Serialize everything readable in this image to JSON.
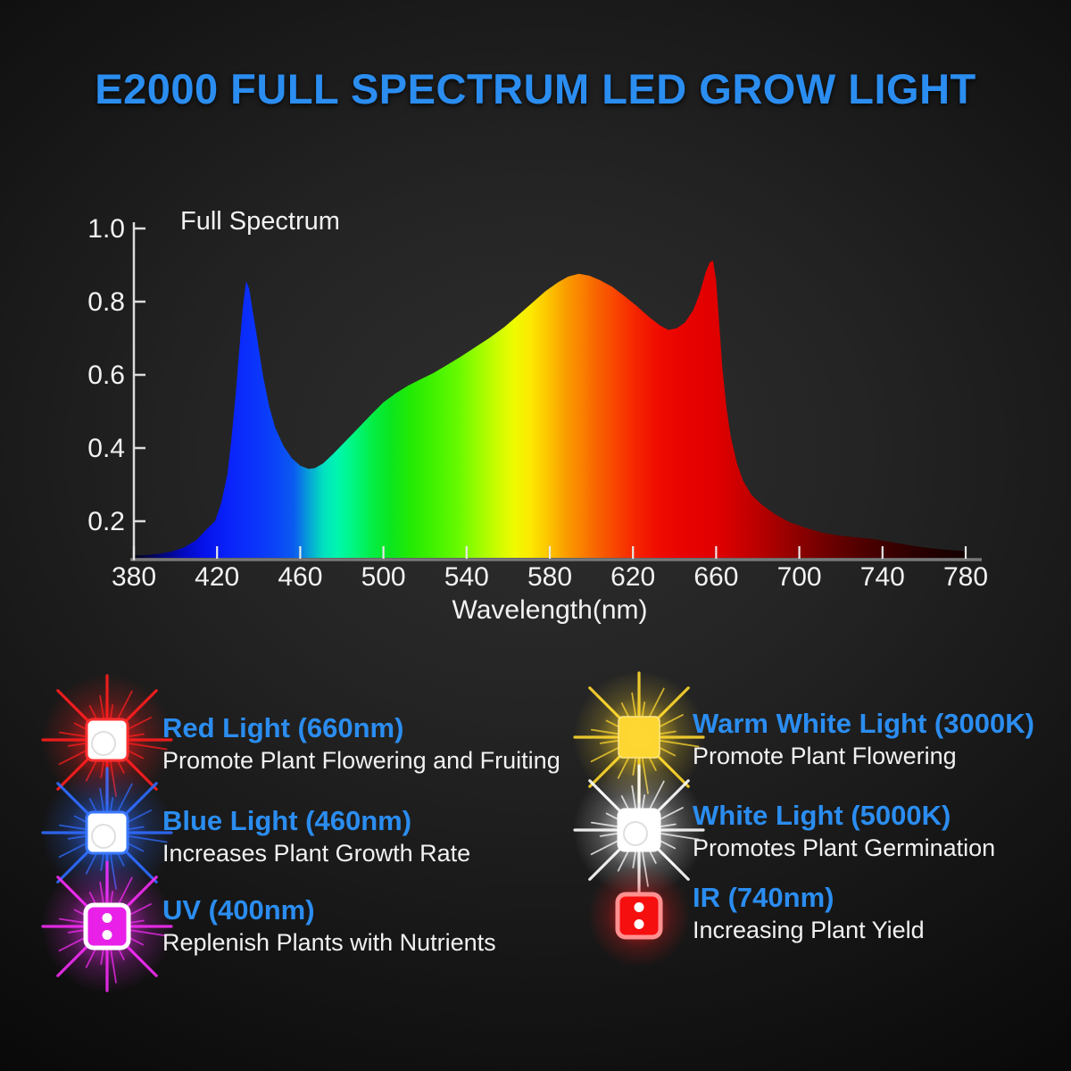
{
  "title": "E2000 FULL SPECTRUM LED GROW LIGHT",
  "colors": {
    "accent_blue": "#2b8df0",
    "text_white": "#f1f1f1",
    "axis_spine": "#dcdcdc",
    "axis_baseline": "#787878",
    "background_center": "#2e2e2e",
    "background_edge": "#050505"
  },
  "chart_data": {
    "type": "area",
    "title": "Full Spectrum",
    "xlabel": "Wavelength(nm)",
    "ylabel": "",
    "xlim": [
      380,
      780
    ],
    "ylim": [
      0.1,
      1.02
    ],
    "grid": false,
    "x_ticks": [
      380,
      420,
      460,
      500,
      540,
      580,
      620,
      660,
      700,
      740,
      780
    ],
    "y_ticks": [
      {
        "label": "1.0",
        "value": 1.0
      },
      {
        "label": "0.8",
        "value": 0.8
      },
      {
        "label": "0.6",
        "value": 0.6
      },
      {
        "label": "0.4",
        "value": 0.4
      },
      {
        "label": "0.2",
        "value": 0.2
      }
    ],
    "series": [
      {
        "name": "Full Spectrum",
        "points": [
          [
            380,
            0.106
          ],
          [
            386,
            0.108
          ],
          [
            392,
            0.111
          ],
          [
            398,
            0.117
          ],
          [
            404,
            0.128
          ],
          [
            410,
            0.148
          ],
          [
            415,
            0.178
          ],
          [
            419,
            0.2
          ],
          [
            422,
            0.25
          ],
          [
            425,
            0.33
          ],
          [
            427,
            0.43
          ],
          [
            429,
            0.55
          ],
          [
            431,
            0.69
          ],
          [
            432.5,
            0.79
          ],
          [
            434,
            0.856
          ],
          [
            435.5,
            0.835
          ],
          [
            437,
            0.78
          ],
          [
            439,
            0.71
          ],
          [
            442,
            0.6
          ],
          [
            445,
            0.515
          ],
          [
            448,
            0.455
          ],
          [
            452,
            0.405
          ],
          [
            456,
            0.372
          ],
          [
            460,
            0.352
          ],
          [
            464,
            0.343
          ],
          [
            467,
            0.345
          ],
          [
            471,
            0.358
          ],
          [
            476,
            0.385
          ],
          [
            482,
            0.42
          ],
          [
            488,
            0.455
          ],
          [
            494,
            0.491
          ],
          [
            500,
            0.525
          ],
          [
            506,
            0.55
          ],
          [
            512,
            0.571
          ],
          [
            518,
            0.588
          ],
          [
            524,
            0.605
          ],
          [
            530,
            0.625
          ],
          [
            537,
            0.649
          ],
          [
            544,
            0.675
          ],
          [
            551,
            0.701
          ],
          [
            558,
            0.73
          ],
          [
            565,
            0.764
          ],
          [
            572,
            0.799
          ],
          [
            578,
            0.829
          ],
          [
            584,
            0.853
          ],
          [
            589,
            0.869
          ],
          [
            594,
            0.876
          ],
          [
            599,
            0.871
          ],
          [
            604,
            0.859
          ],
          [
            610,
            0.841
          ],
          [
            616,
            0.815
          ],
          [
            622,
            0.787
          ],
          [
            628,
            0.757
          ],
          [
            633,
            0.735
          ],
          [
            637,
            0.723
          ],
          [
            641,
            0.727
          ],
          [
            645,
            0.743
          ],
          [
            649,
            0.777
          ],
          [
            652,
            0.821
          ],
          [
            655,
            0.881
          ],
          [
            657,
            0.908
          ],
          [
            658.5,
            0.912
          ],
          [
            660,
            0.858
          ],
          [
            661.5,
            0.738
          ],
          [
            663,
            0.618
          ],
          [
            665,
            0.508
          ],
          [
            667,
            0.432
          ],
          [
            670,
            0.358
          ],
          [
            673,
            0.31
          ],
          [
            677,
            0.272
          ],
          [
            682,
            0.245
          ],
          [
            688,
            0.22
          ],
          [
            695,
            0.198
          ],
          [
            703,
            0.182
          ],
          [
            711,
            0.169
          ],
          [
            719,
            0.161
          ],
          [
            727,
            0.156
          ],
          [
            735,
            0.152
          ],
          [
            742,
            0.145
          ],
          [
            750,
            0.137
          ],
          [
            758,
            0.13
          ],
          [
            767,
            0.124
          ],
          [
            780,
            0.118
          ]
        ]
      }
    ],
    "spectrum_gradient_stops": [
      [
        380,
        "#06031a"
      ],
      [
        392,
        "#04066e"
      ],
      [
        404,
        "#040ac0"
      ],
      [
        414,
        "#0512ec"
      ],
      [
        426,
        "#0a23fa"
      ],
      [
        438,
        "#0b33fb"
      ],
      [
        448,
        "#0a44f8"
      ],
      [
        457,
        "#0a5cf0"
      ],
      [
        464,
        "#08a0d8"
      ],
      [
        471,
        "#02e0c0"
      ],
      [
        478,
        "#00f6ae"
      ],
      [
        486,
        "#00f67e"
      ],
      [
        494,
        "#04ee4a"
      ],
      [
        503,
        "#0ae620"
      ],
      [
        513,
        "#23ea04"
      ],
      [
        524,
        "#41f200"
      ],
      [
        536,
        "#68fa00"
      ],
      [
        548,
        "#a8fc00"
      ],
      [
        556,
        "#d2fc00"
      ],
      [
        563,
        "#f0fa00"
      ],
      [
        571,
        "#fce800"
      ],
      [
        579,
        "#fcc600"
      ],
      [
        587,
        "#faa000"
      ],
      [
        595,
        "#fa8200"
      ],
      [
        603,
        "#f86200"
      ],
      [
        612,
        "#f84400"
      ],
      [
        622,
        "#f52200"
      ],
      [
        632,
        "#f00c00"
      ],
      [
        645,
        "#e80200"
      ],
      [
        660,
        "#e00000"
      ],
      [
        668,
        "#d20000"
      ],
      [
        680,
        "#ba0000"
      ],
      [
        692,
        "#9e0000"
      ],
      [
        705,
        "#800000"
      ],
      [
        718,
        "#650000"
      ],
      [
        731,
        "#4e0000"
      ],
      [
        744,
        "#3a0000"
      ],
      [
        757,
        "#2a0000"
      ],
      [
        769,
        "#1d0000"
      ],
      [
        780,
        "#140000"
      ]
    ],
    "annotations": {
      "peaks": [
        {
          "wavelength": 434,
          "value": 0.856,
          "label": "blue peak"
        },
        {
          "wavelength": 594,
          "value": 0.876,
          "label": "broad warm peak"
        },
        {
          "wavelength": 658,
          "value": 0.912,
          "label": "red peak"
        }
      ]
    }
  },
  "legend": {
    "items": [
      {
        "id": "red-light",
        "title": "Red Light (660nm)",
        "desc": "Promote Plant Flowering and Fruiting",
        "glow": "#ff1d1d",
        "chip": "#ffffff",
        "border": "#ff3030",
        "chip_style": "glass",
        "rays": "burst"
      },
      {
        "id": "blue-light",
        "title": "Blue Light (460nm)",
        "desc": "Increases Plant Growth Rate",
        "glow": "#2f6bff",
        "chip": "#ffffff",
        "border": "#3a78ff",
        "chip_style": "glass",
        "rays": "burst"
      },
      {
        "id": "uv",
        "title": "UV (400nm)",
        "desc": "Replenish Plants with Nutrients",
        "glow": "#f32cf3",
        "chip": "#e820e8",
        "border": "#ffffff",
        "chip_style": "dots",
        "rays": "burst"
      },
      {
        "id": "warm-white",
        "title": "Warm White Light (3000K)",
        "desc": "Promote Plant Flowering",
        "glow": "#ffd82e",
        "chip": "#ffd833",
        "border": "#ffe88a",
        "chip_style": "solid",
        "rays": "burst"
      },
      {
        "id": "white",
        "title": "White Light (5000K)",
        "desc": "Promotes Plant Germination",
        "glow": "#ffffff",
        "chip": "#ffffff",
        "border": "#ffffff",
        "chip_style": "glass",
        "rays": "burst"
      },
      {
        "id": "ir",
        "title": "IR (740nm)",
        "desc": "Increasing Plant Yield",
        "glow": "#ff1a1a",
        "chip": "#f50f0f",
        "border": "#ff9090",
        "chip_style": "dots",
        "rays": "glow"
      }
    ]
  }
}
